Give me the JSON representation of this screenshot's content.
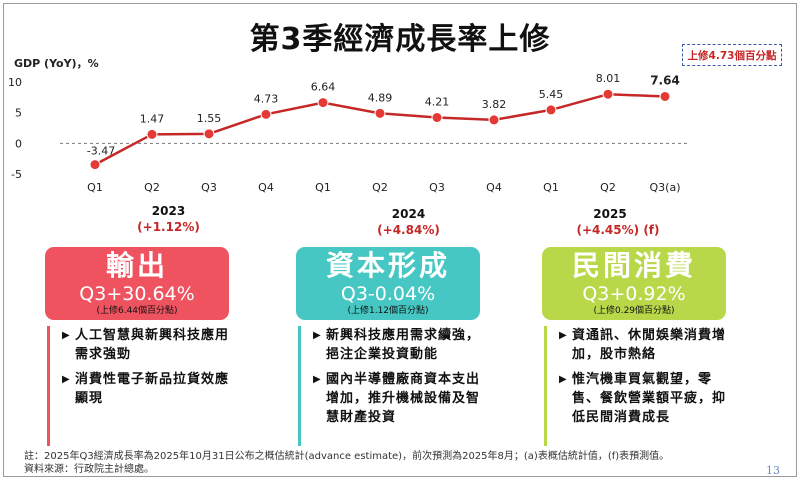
{
  "title": "第3季經濟成長率上修",
  "callout": "上修4.73個百分點",
  "chart_data": {
    "type": "line",
    "ylabel": "GDP (YoY)，%",
    "ylim": [
      -5,
      10
    ],
    "yticks": [
      -5,
      0,
      5,
      10
    ],
    "x": [
      "Q1",
      "Q2",
      "Q3",
      "Q4",
      "Q1",
      "Q2",
      "Q3",
      "Q4",
      "Q1",
      "Q2",
      "Q3(a)"
    ],
    "years": [
      {
        "label": "2023",
        "growth": "(+1.12%)"
      },
      {
        "label": "2024",
        "growth": "(+4.84%)"
      },
      {
        "label": "2025",
        "growth": "(+4.45%) (f)"
      }
    ],
    "series": [
      {
        "values": [
          -3.47,
          1.47,
          1.55,
          4.73,
          6.64,
          4.89,
          4.21,
          3.82,
          5.45,
          8.01,
          7.64
        ]
      }
    ],
    "data_labels": [
      "-3.47",
      "1.47",
      "1.55",
      "4.73",
      "6.64",
      "4.89",
      "4.21",
      "3.82",
      "5.45",
      "8.01",
      "7.64"
    ],
    "line_color": "#c62828",
    "marker_color": "#e53935",
    "zero_line": "dashed"
  },
  "cards": [
    {
      "name": "輸出",
      "value": "Q3+30.64%",
      "revision": "(上修6.44個百分點)",
      "color": "#ef5360",
      "bullets": [
        "人工智慧與新興科技應用需求強勁",
        "消費性電子新品拉貨效應顯現"
      ]
    },
    {
      "name": "資本形成",
      "value": "Q3-0.04%",
      "revision": "(上修1.12個百分點)",
      "color": "#46c7c4",
      "bullets": [
        "新興科技應用需求續強，挹注企業投資動能",
        "國內半導體廠商資本支出增加，推升機械設備及智慧財產投資"
      ]
    },
    {
      "name": "民間消費",
      "value": "Q3+0.92%",
      "revision": "(上修0.29個百分點)",
      "color": "#b8d84a",
      "bullets": [
        "資通訊、休閒娛樂消費增加，股市熱絡",
        "惟汽機車買氣觀望，零售、餐飲營業額平疲，抑低民間消費成長"
      ]
    }
  ],
  "notes": {
    "line1": "註：2025年Q3經濟成長率為2025年10月31日公布之概估統計(advance estimate)，前次預測為2025年8月；(a)表概估統計值，(f)表預測值。",
    "line2": "資料來源：行政院主計總處。"
  },
  "page_number": "13"
}
